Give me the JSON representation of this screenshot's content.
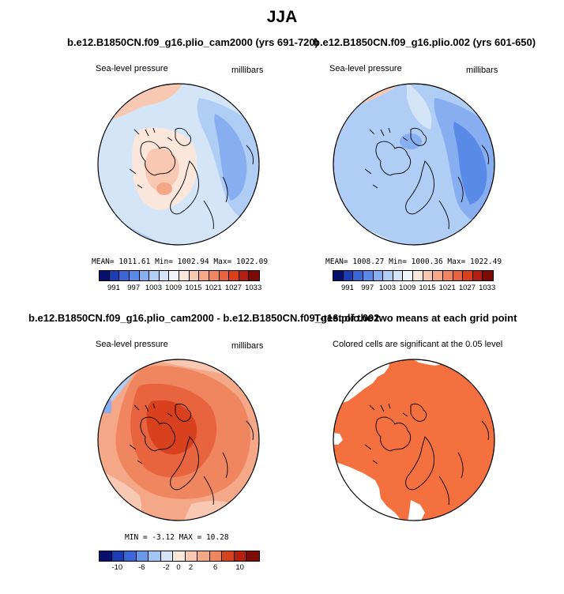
{
  "title": "JJA",
  "panels": [
    {
      "title": "b.e12.B1850CN.f09_g16.plio_cam2000 (yrs 691-720)",
      "left_label": "Sea-level pressure",
      "right_label": "millibars",
      "stats": "MEAN= 1011.61  Min= 1002.94  Max= 1022.09",
      "colorbar_ticks": [
        "991",
        "997",
        "1003",
        "1009",
        "1015",
        "1021",
        "1027",
        "1033"
      ]
    },
    {
      "title": "b.e12.B1850CN.f09_g16.plio.002 (yrs 601-650)",
      "left_label": "Sea-level pressure",
      "right_label": "millibars",
      "stats": "MEAN= 1008.27  Min= 1000.36  Max= 1022.49",
      "colorbar_ticks": [
        "991",
        "997",
        "1003",
        "1009",
        "1015",
        "1021",
        "1027",
        "1033"
      ]
    },
    {
      "title": "b.e12.B1850CN.f09_g16.plio_cam2000 - b.e12.B1850CN.f09_g16.plio.002",
      "left_label": "Sea-level pressure",
      "right_label": "millibars",
      "stats": "MIN =  -3.12  MAX =  10.28",
      "colorbar_ticks": [
        "-10",
        "-6",
        "-2",
        "0",
        "2",
        "6",
        "10"
      ]
    },
    {
      "title": "T-test of the two means at each grid point",
      "left_label": "Colored cells are significant at the 0.05 level"
    }
  ],
  "colors": {
    "slp_scale": [
      "#08106e",
      "#1c3cb4",
      "#3a66d8",
      "#5a8ae8",
      "#86aef0",
      "#afcdf5",
      "#d4e5f8",
      "#f0f4fb",
      "#fbe6dc",
      "#f8c8b2",
      "#f4a888",
      "#ef8660",
      "#e8643e",
      "#d8401e",
      "#b41e10",
      "#7c0a06"
    ],
    "diff_scale": [
      "#08106e",
      "#1c3cb4",
      "#3a66d8",
      "#6a96ec",
      "#a4c6f4",
      "#d4e5f8",
      "#fbe6dc",
      "#f8c8b2",
      "#f4a888",
      "#ef8660",
      "#d8401e",
      "#b41e10",
      "#7c0a06"
    ],
    "significant": "#f4703e"
  }
}
